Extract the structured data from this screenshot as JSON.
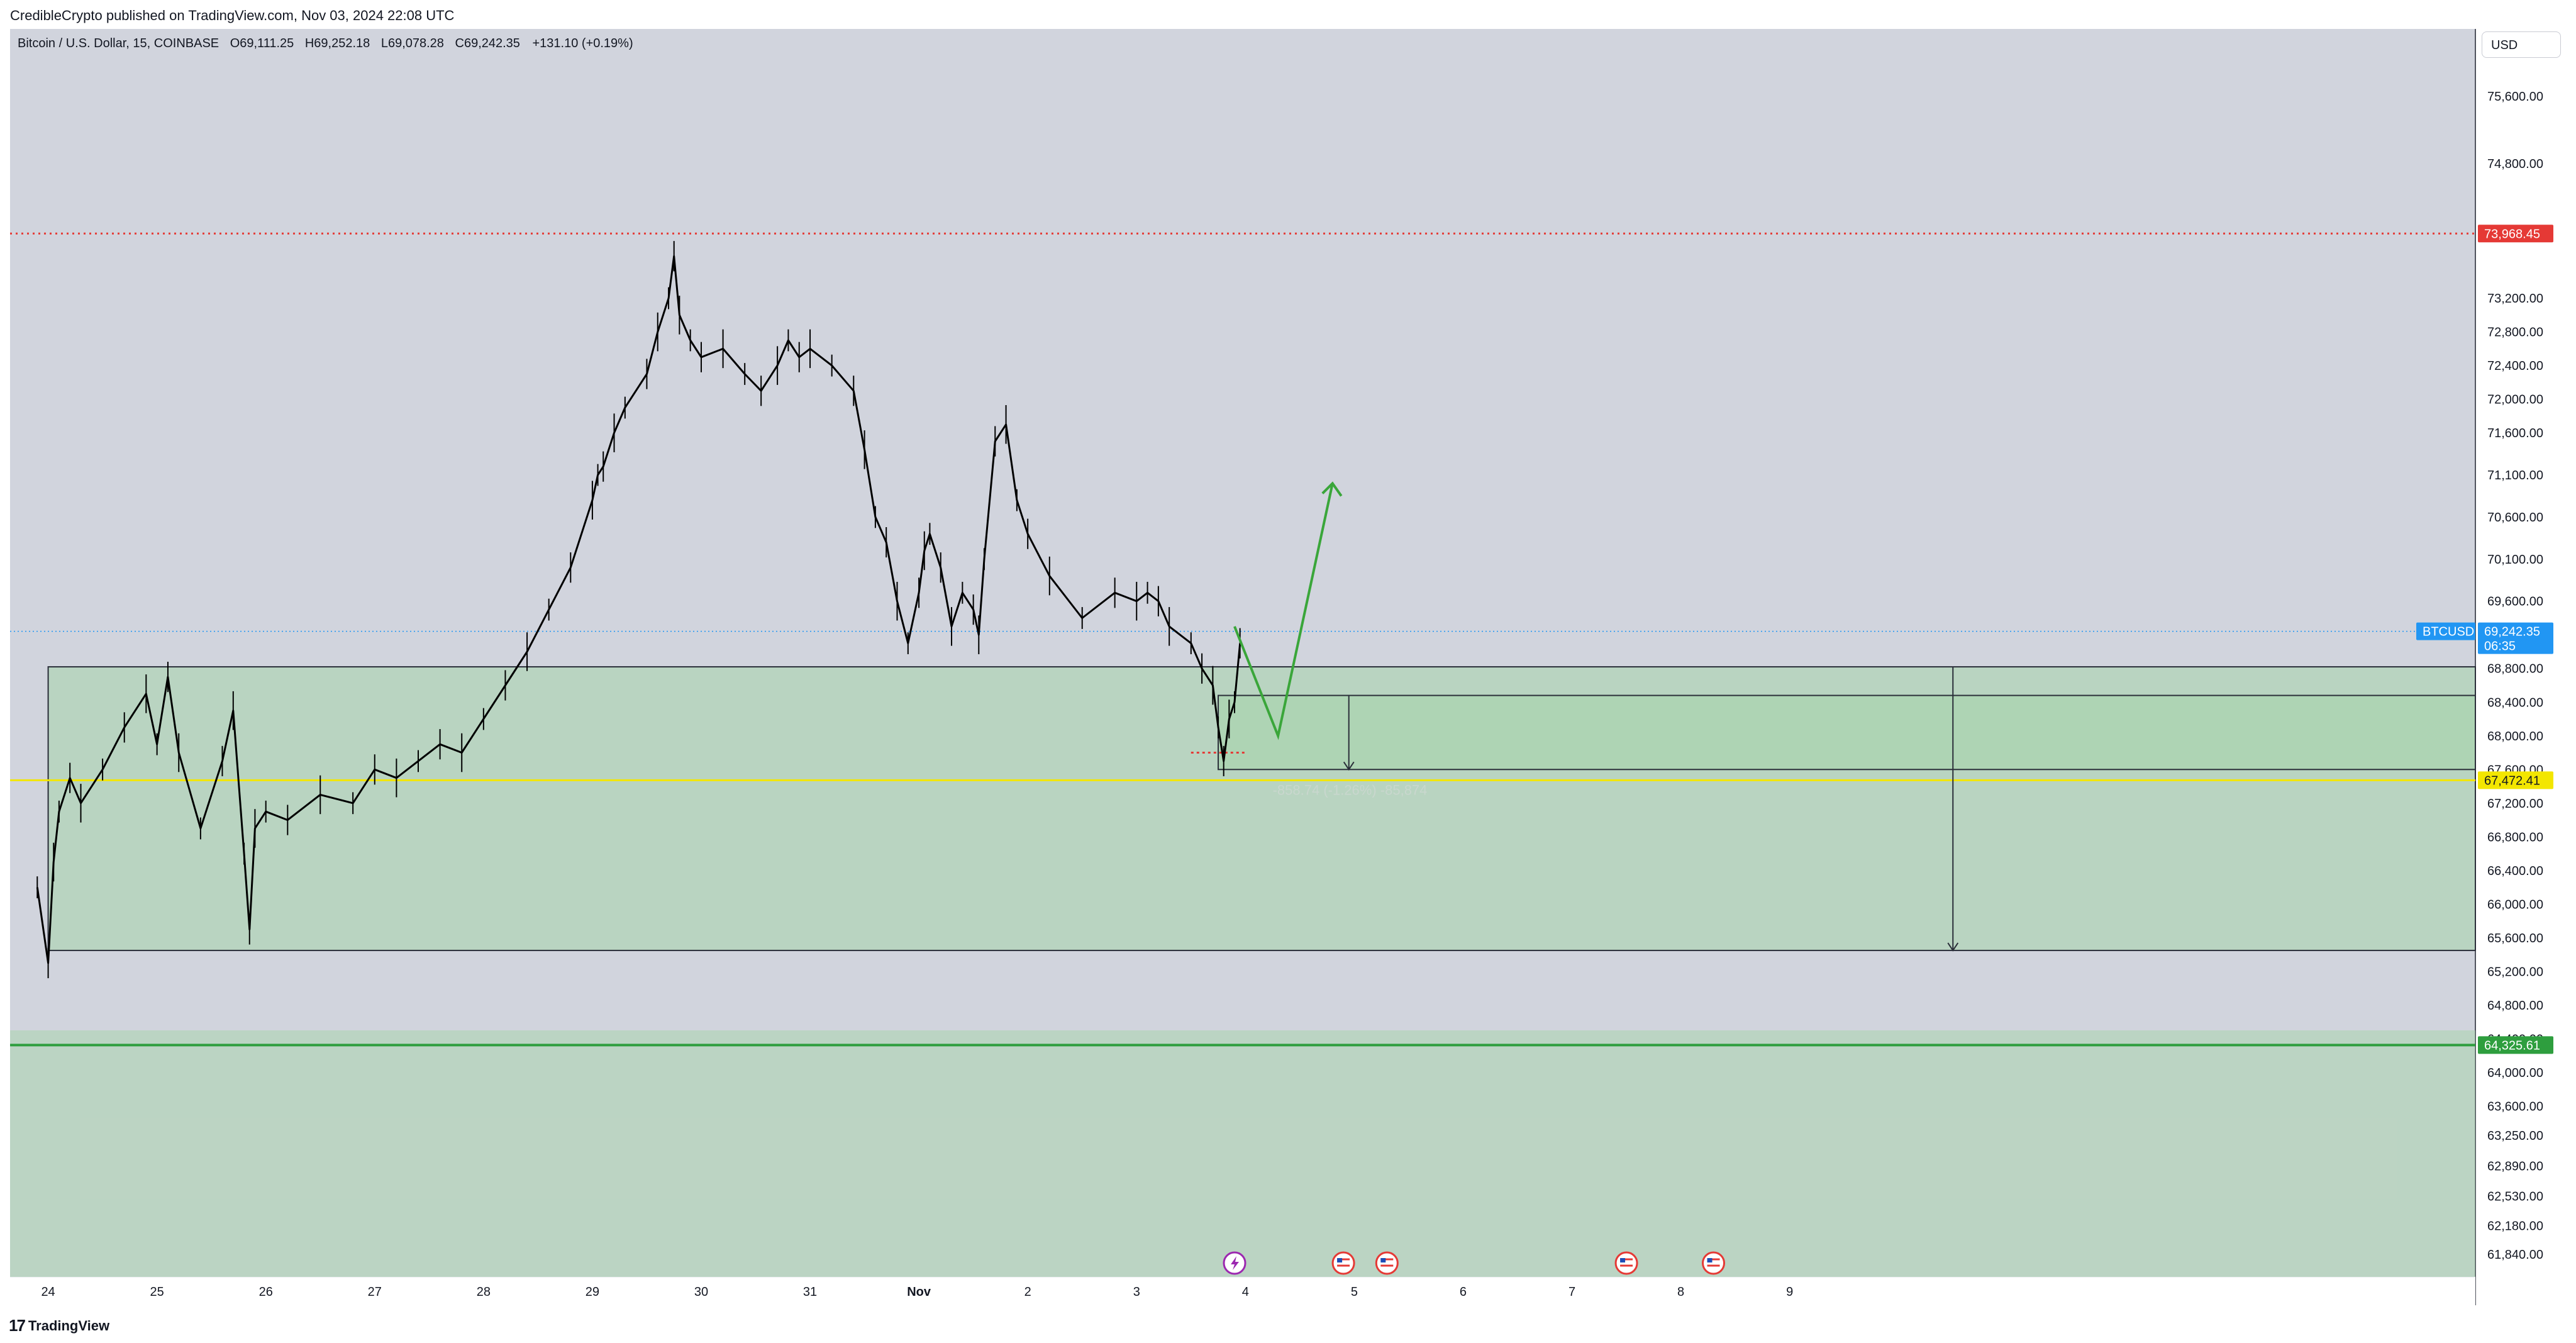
{
  "header": {
    "publisher_line": "CredibleCrypto published on TradingView.com, Nov 03, 2024 22:08 UTC"
  },
  "footer": {
    "brand": "TradingView",
    "logo_glyph": "17"
  },
  "currency_button": "USD",
  "legend": {
    "symbol": "Bitcoin / U.S. Dollar, 15, COINBASE",
    "o_key": "O",
    "o_val": "69,111.25",
    "h_key": "H",
    "h_val": "69,252.18",
    "l_key": "L",
    "l_val": "69,078.28",
    "c_key": "C",
    "c_val": "69,242.35",
    "change": "+131.10 (+0.19%)"
  },
  "colors": {
    "pane_bg": "#d1d4dd",
    "zone_fill": "#a6d3a9",
    "resistance_red": "#e53935",
    "support_yellow": "#f3e600",
    "support_green": "#2e9e3e",
    "projection_green": "#3aa63a",
    "candle": "#000000",
    "price_label_blue": "#2196f3"
  },
  "chart_data": {
    "type": "line",
    "title": "Bitcoin / U.S. Dollar, 15, COINBASE",
    "xlabel": "",
    "ylabel": "",
    "x_ticks": [
      "24",
      "25",
      "26",
      "27",
      "28",
      "29",
      "30",
      "31",
      "Nov",
      "2",
      "3",
      "4",
      "5",
      "6",
      "7",
      "8",
      "9"
    ],
    "y_ticks": [
      "75,600.00",
      "74,800.00",
      "73,200.00",
      "72,800.00",
      "72,400.00",
      "72,000.00",
      "71,600.00",
      "71,100.00",
      "70,600.00",
      "70,100.00",
      "69,600.00",
      "68,800.00",
      "68,400.00",
      "68,000.00",
      "67,600.00",
      "67,200.00",
      "66,800.00",
      "66,400.00",
      "66,000.00",
      "65,600.00",
      "65,200.00",
      "64,800.00",
      "64,400.00",
      "64,000.00",
      "63,600.00",
      "63,250.00",
      "62,890.00",
      "62,530.00",
      "62,180.00",
      "61,840.00"
    ],
    "series": [
      {
        "values_x": [
          23.9,
          24.0,
          24.05,
          24.1,
          24.2,
          24.3,
          24.5,
          24.7,
          24.9,
          25.0,
          25.1,
          25.2,
          25.4,
          25.6,
          25.7,
          25.8,
          25.85,
          25.9,
          26.0,
          26.2,
          26.5,
          26.8,
          27.0,
          27.2,
          27.4,
          27.6,
          27.8,
          28.0,
          28.2,
          28.4,
          28.6,
          28.8,
          29.0,
          29.05,
          29.1,
          29.2,
          29.3,
          29.5,
          29.6,
          29.7,
          29.75,
          29.8,
          29.9,
          30.0,
          30.2,
          30.4,
          30.55,
          30.7,
          30.8,
          30.9,
          31.0,
          31.2,
          31.4,
          31.5,
          31.6,
          31.7,
          31.8,
          31.9,
          32.0,
          32.05,
          32.1,
          32.2,
          32.3,
          32.4,
          32.5,
          32.55,
          32.6,
          32.7,
          32.8,
          32.9,
          33.0,
          33.2,
          33.5,
          33.8,
          34.0,
          34.1,
          34.2,
          34.3,
          34.5,
          34.6,
          34.7,
          34.75,
          34.8,
          34.85,
          34.9,
          34.95
        ],
        "values_y": [
          66200,
          65300,
          66500,
          67100,
          67500,
          67200,
          67600,
          68100,
          68500,
          67900,
          68700,
          67800,
          66900,
          67700,
          68300,
          66600,
          65700,
          66900,
          67100,
          67000,
          67300,
          67200,
          67600,
          67500,
          67700,
          67900,
          67800,
          68200,
          68600,
          69000,
          69500,
          70000,
          70800,
          71100,
          71200,
          71600,
          71900,
          72300,
          72800,
          73200,
          73700,
          73000,
          72700,
          72500,
          72600,
          72300,
          72100,
          72400,
          72700,
          72500,
          72600,
          72400,
          72100,
          71400,
          70600,
          70300,
          69600,
          69100,
          69700,
          70200,
          70400,
          70000,
          69300,
          69700,
          69500,
          69200,
          70100,
          71500,
          71700,
          70800,
          70400,
          69900,
          69400,
          69700,
          69600,
          69700,
          69600,
          69300,
          69100,
          68800,
          68600,
          68100,
          67700,
          68200,
          68400,
          69100
        ]
      }
    ],
    "annotations": {
      "resistance_price": 73968.45,
      "resistance_label": "73,968.45",
      "current_price": 69242.35,
      "current_price_label": "69,242.35",
      "current_symbol_label": "BTCUSD",
      "countdown_label": "06:35",
      "yellow_level": 67472.41,
      "yellow_level_label": "67,472.41",
      "green_level": 64325.61,
      "green_level_label": "64,325.61",
      "measure_text": "-858.74 (-1.26%) -85,874",
      "demand_zone": [
        65450,
        68820
      ],
      "inner_box": [
        67600,
        68480
      ],
      "lower_zone": [
        61700,
        64500
      ],
      "projection_path": [
        [
          34.9,
          69300
        ],
        [
          35.3,
          68000
        ],
        [
          35.8,
          71000
        ]
      ]
    },
    "event_markers": [
      {
        "x": 34.9,
        "icon": "lightning-icon"
      },
      {
        "x": 35.9,
        "icon": "us-flag-icon"
      },
      {
        "x": 36.3,
        "icon": "us-flag-icon"
      },
      {
        "x": 38.5,
        "icon": "us-flag-icon"
      },
      {
        "x": 39.3,
        "icon": "us-flag-icon"
      }
    ],
    "x_range": [
      23.65,
      46.3
    ],
    "y_range": [
      61570,
      76400
    ],
    "grid": false,
    "legend": "top-left"
  }
}
